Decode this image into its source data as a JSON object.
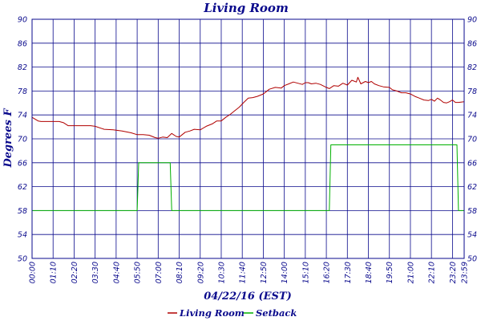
{
  "chart_data": {
    "type": "line",
    "title": "Living Room",
    "xlabel": "04/22/16 (EST)",
    "ylabel": "Degrees F",
    "ylim": [
      50,
      90
    ],
    "yticks": [
      50,
      54,
      58,
      62,
      66,
      70,
      74,
      78,
      82,
      86,
      90
    ],
    "xlim_minutes": [
      0,
      1439
    ],
    "xtick_labels": [
      "00:00",
      "01:10",
      "02:20",
      "03:30",
      "04:40",
      "05:50",
      "07:00",
      "08:10",
      "09:20",
      "10:30",
      "11:40",
      "12:50",
      "14:00",
      "15:10",
      "16:20",
      "17:30",
      "18:40",
      "19:50",
      "21:00",
      "22:10",
      "23:20",
      "23:59"
    ],
    "grid": true,
    "legend_position": "bottom",
    "colors": {
      "axis": "#0a0a8c",
      "grid": "#0a0a8c",
      "background": "#ffffff"
    },
    "series": [
      {
        "name": "Living Room",
        "color": "#b00000",
        "x_time": [
          "00:00",
          "00:20",
          "00:30",
          "01:00",
          "01:30",
          "01:45",
          "02:00",
          "02:30",
          "03:00",
          "03:15",
          "03:30",
          "04:00",
          "04:30",
          "05:00",
          "05:30",
          "05:50",
          "06:10",
          "06:30",
          "06:50",
          "07:00",
          "07:15",
          "07:30",
          "07:45",
          "08:00",
          "08:10",
          "08:30",
          "08:45",
          "09:00",
          "09:20",
          "09:40",
          "10:00",
          "10:15",
          "10:30",
          "10:45",
          "11:00",
          "11:15",
          "11:30",
          "11:45",
          "12:00",
          "12:15",
          "12:30",
          "12:50",
          "13:10",
          "13:30",
          "13:50",
          "14:00",
          "14:15",
          "14:30",
          "14:45",
          "15:00",
          "15:10",
          "15:20",
          "15:30",
          "15:45",
          "16:00",
          "16:20",
          "16:30",
          "16:45",
          "17:00",
          "17:15",
          "17:30",
          "17:45",
          "18:00",
          "18:05",
          "18:15",
          "18:30",
          "18:40",
          "18:50",
          "19:00",
          "19:15",
          "19:30",
          "19:50",
          "20:00",
          "20:15",
          "20:30",
          "20:45",
          "21:00",
          "21:15",
          "21:30",
          "21:45",
          "22:00",
          "22:10",
          "22:20",
          "22:30",
          "22:40",
          "22:50",
          "23:00",
          "23:10",
          "23:20",
          "23:30",
          "23:40",
          "23:59"
        ],
        "values": [
          73.6,
          73.0,
          72.9,
          72.9,
          72.9,
          72.7,
          72.2,
          72.2,
          72.2,
          72.2,
          72.1,
          71.6,
          71.5,
          71.3,
          71.0,
          70.7,
          70.7,
          70.6,
          70.2,
          70.1,
          70.3,
          70.2,
          70.9,
          70.4,
          70.3,
          71.1,
          71.3,
          71.6,
          71.5,
          72.1,
          72.5,
          73.0,
          73.0,
          73.6,
          74.1,
          74.7,
          75.3,
          76.1,
          76.8,
          76.9,
          77.1,
          77.5,
          78.3,
          78.6,
          78.5,
          78.9,
          79.2,
          79.5,
          79.3,
          79.1,
          79.4,
          79.4,
          79.2,
          79.3,
          79.1,
          78.6,
          78.4,
          78.9,
          78.8,
          79.3,
          79.0,
          79.8,
          79.5,
          80.3,
          79.2,
          79.6,
          79.4,
          79.6,
          79.2,
          78.9,
          78.7,
          78.6,
          78.2,
          78.0,
          77.7,
          77.7,
          77.5,
          77.1,
          76.8,
          76.5,
          76.4,
          76.6,
          76.3,
          76.8,
          76.5,
          76.1,
          76.0,
          76.2,
          76.5,
          76.1,
          76.1,
          76.2
        ]
      },
      {
        "name": "Setback",
        "color": "#00b000",
        "x_time": [
          "00:00",
          "05:50",
          "05:55",
          "07:40",
          "07:45",
          "16:30",
          "16:35",
          "23:35",
          "23:40",
          "23:59"
        ],
        "values": [
          58,
          58,
          66,
          66,
          58,
          58,
          69,
          69,
          58,
          58
        ]
      }
    ]
  }
}
